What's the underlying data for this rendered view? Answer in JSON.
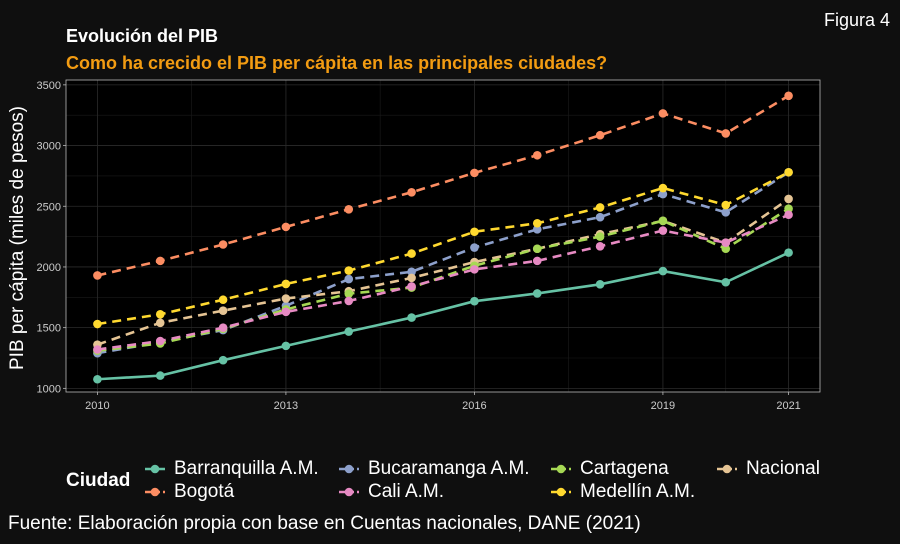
{
  "figure_label": "Figura 4",
  "caption": "Fuente: Elaboración propia con base en Cuentas nacionales, DANE (2021)",
  "chart_data": {
    "type": "line",
    "title": "Evolución del PIB",
    "subtitle": "Como ha crecido el PIB per cápita en las principales ciudades?",
    "xlabel": "",
    "ylabel": "PIB per cápita (miles de pesos)",
    "x": [
      2010,
      2011,
      2012,
      2013,
      2014,
      2015,
      2016,
      2017,
      2018,
      2019,
      2020,
      2021
    ],
    "x_ticks": [
      "2010",
      "2013",
      "2016",
      "2019",
      "2021"
    ],
    "y_ticks": [
      "1000",
      "1500",
      "2000",
      "2500",
      "3000",
      "3500"
    ],
    "xlim": [
      2009.5,
      2021.5
    ],
    "ylim": [
      970,
      3540
    ],
    "grid": true,
    "legend_title": "Ciudad",
    "legend_position": "bottom",
    "series": [
      {
        "name": "Barranquilla A.M.",
        "color": "#66c2a5",
        "dash": false,
        "values": [
          1075,
          1105,
          1232,
          1350,
          1468,
          1583,
          1718,
          1782,
          1857,
          1966,
          1874,
          2118
        ]
      },
      {
        "name": "Bogotá",
        "color": "#fc8d62",
        "dash": true,
        "values": [
          1930,
          2050,
          2185,
          2330,
          2475,
          2615,
          2775,
          2920,
          3085,
          3265,
          3100,
          3410
        ]
      },
      {
        "name": "Bucaramanga A.M.",
        "color": "#8da0cb",
        "dash": true,
        "values": [
          1290,
          1380,
          1480,
          1680,
          1900,
          1960,
          2160,
          2310,
          2410,
          2600,
          2450,
          2780
        ]
      },
      {
        "name": "Cali A.M.",
        "color": "#e78ac3",
        "dash": true,
        "values": [
          1320,
          1390,
          1500,
          1630,
          1720,
          1840,
          1980,
          2050,
          2170,
          2300,
          2200,
          2430
        ]
      },
      {
        "name": "Cartagena",
        "color": "#a6d854",
        "dash": true,
        "values": [
          1310,
          1370,
          1490,
          1650,
          1780,
          1830,
          2010,
          2150,
          2250,
          2380,
          2150,
          2480
        ]
      },
      {
        "name": "Medellín A.M.",
        "color": "#ffd92f",
        "dash": true,
        "values": [
          1530,
          1610,
          1730,
          1860,
          1970,
          2110,
          2290,
          2360,
          2490,
          2650,
          2510,
          2780
        ]
      },
      {
        "name": "Nacional",
        "color": "#e5c494",
        "dash": true,
        "values": [
          1360,
          1540,
          1640,
          1740,
          1800,
          1910,
          2040,
          2150,
          2270,
          2380,
          2200,
          2560
        ]
      }
    ]
  }
}
